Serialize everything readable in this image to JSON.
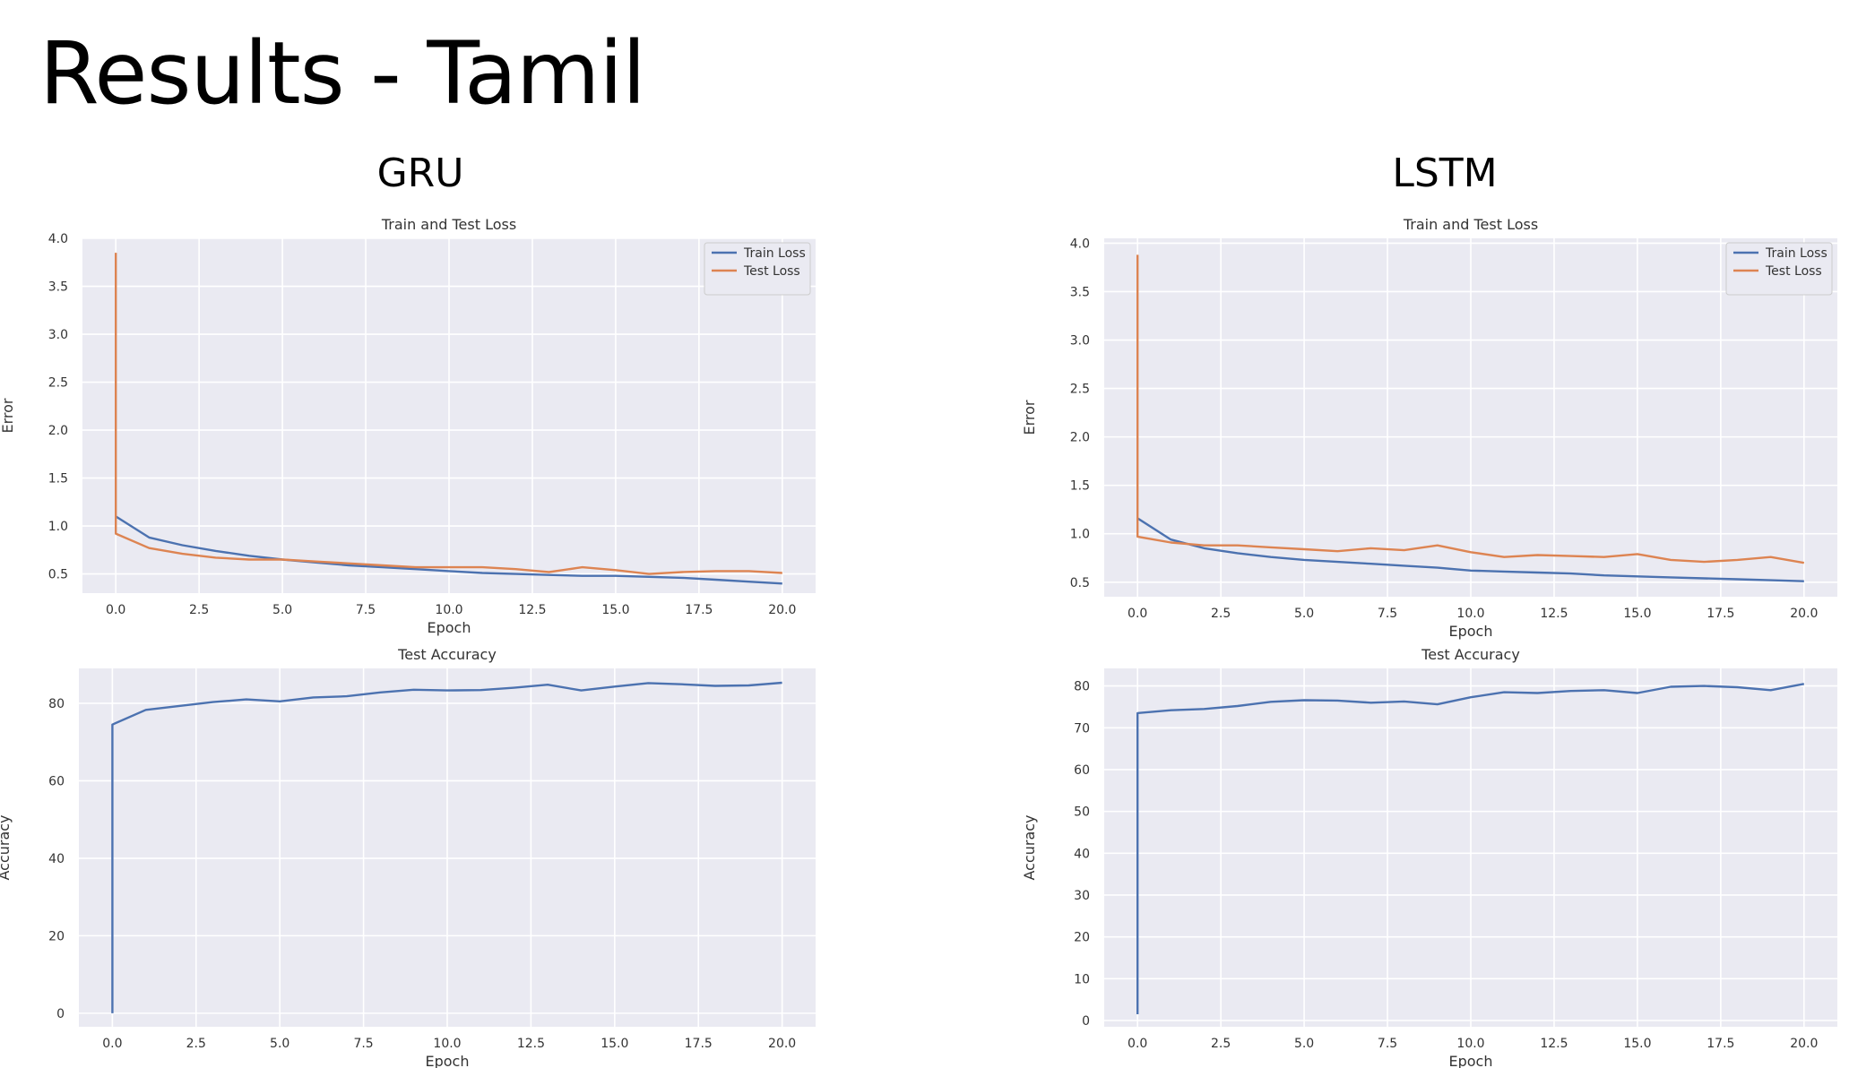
{
  "slide": {
    "title": "Results - Tamil"
  },
  "panels": [
    {
      "heading": "GRU"
    },
    {
      "heading": "LSTM"
    }
  ],
  "colors": {
    "plot_background": "#eaeaf2",
    "grid": "#ffffff",
    "train_line": "#4c72b0",
    "test_line": "#dd8452"
  },
  "chart_data": [
    {
      "panel": "GRU",
      "type": "line",
      "title": "Train and Test Loss",
      "xlabel": "Epoch",
      "ylabel": "Error",
      "xlim": [
        -1,
        21
      ],
      "ylim": [
        0.3,
        4.0
      ],
      "xticks": [
        0,
        2.5,
        5,
        7.5,
        10,
        12.5,
        15,
        17.5,
        20
      ],
      "yticks": [
        0.5,
        1.0,
        1.5,
        2.0,
        2.5,
        3.0,
        3.5,
        4.0
      ],
      "grid": true,
      "legend": "upper-right",
      "x": [
        0,
        1,
        2,
        3,
        4,
        5,
        6,
        7,
        8,
        9,
        10,
        11,
        12,
        13,
        14,
        15,
        16,
        17,
        18,
        19,
        20
      ],
      "series": [
        {
          "name": "Train Loss",
          "color": "#4c72b0",
          "x": [
            0,
            1,
            2,
            3,
            4,
            5,
            6,
            7,
            8,
            9,
            10,
            11,
            12,
            13,
            14,
            15,
            16,
            17,
            18,
            19,
            20
          ],
          "values": [
            1.1,
            0.88,
            0.8,
            0.74,
            0.69,
            0.65,
            0.62,
            0.59,
            0.57,
            0.55,
            0.53,
            0.51,
            0.5,
            0.49,
            0.48,
            0.48,
            0.47,
            0.46,
            0.44,
            0.42,
            0.4
          ]
        },
        {
          "name": "Test Loss",
          "color": "#dd8452",
          "x": [
            0,
            0,
            1,
            2,
            3,
            4,
            5,
            6,
            7,
            8,
            9,
            10,
            11,
            12,
            13,
            14,
            15,
            16,
            17,
            18,
            19,
            20
          ],
          "values": [
            3.85,
            0.92,
            0.77,
            0.71,
            0.67,
            0.65,
            0.65,
            0.63,
            0.61,
            0.59,
            0.57,
            0.57,
            0.57,
            0.55,
            0.52,
            0.57,
            0.54,
            0.5,
            0.52,
            0.53,
            0.53,
            0.51
          ]
        }
      ]
    },
    {
      "panel": "LSTM",
      "type": "line",
      "title": "Train and Test Loss",
      "xlabel": "Epoch",
      "ylabel": "Error",
      "xlim": [
        -1,
        21
      ],
      "ylim": [
        0.35,
        4.05
      ],
      "xticks": [
        0,
        2.5,
        5,
        7.5,
        10,
        12.5,
        15,
        17.5,
        20
      ],
      "yticks": [
        0.5,
        1.0,
        1.5,
        2.0,
        2.5,
        3.0,
        3.5,
        4.0
      ],
      "grid": true,
      "legend": "upper-right",
      "x": [
        0,
        1,
        2,
        3,
        4,
        5,
        6,
        7,
        8,
        9,
        10,
        11,
        12,
        13,
        14,
        15,
        16,
        17,
        18,
        19,
        20
      ],
      "series": [
        {
          "name": "Train Loss",
          "color": "#4c72b0",
          "x": [
            0,
            1,
            2,
            3,
            4,
            5,
            6,
            7,
            8,
            9,
            10,
            11,
            12,
            13,
            14,
            15,
            16,
            17,
            18,
            19,
            20
          ],
          "values": [
            1.16,
            0.94,
            0.85,
            0.8,
            0.76,
            0.73,
            0.71,
            0.69,
            0.67,
            0.65,
            0.62,
            0.61,
            0.6,
            0.59,
            0.57,
            0.56,
            0.55,
            0.54,
            0.53,
            0.52,
            0.51
          ]
        },
        {
          "name": "Test Loss",
          "color": "#dd8452",
          "x": [
            0,
            0,
            1,
            2,
            3,
            4,
            5,
            6,
            7,
            8,
            9,
            10,
            11,
            12,
            13,
            14,
            15,
            16,
            17,
            18,
            19,
            20
          ],
          "values": [
            3.88,
            0.97,
            0.91,
            0.88,
            0.88,
            0.86,
            0.84,
            0.82,
            0.85,
            0.83,
            0.88,
            0.81,
            0.76,
            0.78,
            0.77,
            0.76,
            0.79,
            0.73,
            0.71,
            0.73,
            0.76,
            0.7
          ]
        }
      ]
    },
    {
      "panel": "GRU",
      "type": "line",
      "title": "Test Accuracy",
      "xlabel": "Epoch",
      "ylabel": "Accuracy",
      "xlim": [
        -1,
        21
      ],
      "ylim": [
        -3.5,
        89
      ],
      "xticks": [
        0,
        2.5,
        5,
        7.5,
        10,
        12.5,
        15,
        17.5,
        20
      ],
      "yticks": [
        0,
        20,
        40,
        60,
        80
      ],
      "grid": true,
      "x": [
        0,
        0,
        1,
        2,
        3,
        4,
        5,
        6,
        7,
        8,
        9,
        10,
        11,
        12,
        13,
        14,
        15,
        16,
        17,
        18,
        19,
        20
      ],
      "series": [
        {
          "color": "#4c72b0",
          "x": [
            0,
            0,
            1,
            2,
            3,
            4,
            5,
            6,
            7,
            8,
            9,
            10,
            11,
            12,
            13,
            14,
            15,
            16,
            17,
            18,
            19,
            20
          ],
          "values": [
            0,
            74.5,
            78.3,
            79.3,
            80.3,
            81.0,
            80.5,
            81.5,
            81.8,
            82.8,
            83.5,
            83.3,
            83.4,
            84.0,
            84.8,
            83.3,
            84.3,
            85.2,
            84.9,
            84.5,
            84.6,
            85.3
          ]
        }
      ]
    },
    {
      "panel": "LSTM",
      "type": "line",
      "title": "Test Accuracy",
      "xlabel": "Epoch",
      "ylabel": "Accuracy",
      "xlim": [
        -1,
        21
      ],
      "ylim": [
        -1.5,
        84.2
      ],
      "xticks": [
        0,
        2.5,
        5,
        7.5,
        10,
        12.5,
        15,
        17.5,
        20
      ],
      "yticks": [
        0,
        10,
        20,
        30,
        40,
        50,
        60,
        70,
        80
      ],
      "grid": true,
      "x": [
        0,
        0,
        1,
        2,
        3,
        4,
        5,
        6,
        7,
        8,
        9,
        10,
        11,
        12,
        13,
        14,
        15,
        16,
        17,
        18,
        19,
        20
      ],
      "series": [
        {
          "color": "#4c72b0",
          "x": [
            0,
            0,
            1,
            2,
            3,
            4,
            5,
            6,
            7,
            8,
            9,
            10,
            11,
            12,
            13,
            14,
            15,
            16,
            17,
            18,
            19,
            20
          ],
          "values": [
            1.5,
            73.5,
            74.2,
            74.5,
            75.2,
            76.2,
            76.6,
            76.5,
            76.0,
            76.3,
            75.6,
            77.3,
            78.5,
            78.3,
            78.8,
            79.0,
            78.3,
            79.8,
            80.0,
            79.7,
            79.0,
            80.5
          ]
        }
      ]
    }
  ]
}
